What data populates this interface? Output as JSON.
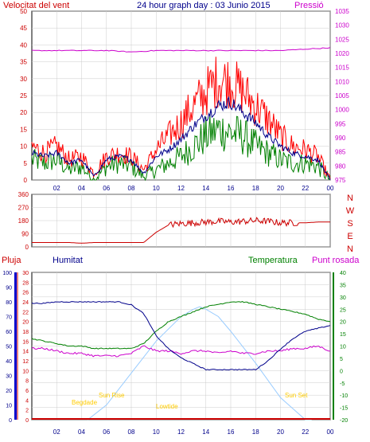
{
  "header": {
    "left_label": "Velocitat del vent",
    "title": "24 hour graph day : 03 Junio 2015",
    "right_label": "Pressió"
  },
  "x_ticks": [
    "02",
    "04",
    "06",
    "08",
    "10",
    "12",
    "14",
    "16",
    "18",
    "20",
    "22",
    "00"
  ],
  "wind": {
    "ylim": [
      0,
      50
    ],
    "yticks": [
      0,
      5,
      10,
      15,
      20,
      25,
      30,
      35,
      40,
      45,
      50
    ],
    "pressure_ylim": [
      975,
      1035
    ],
    "pressure_ticks": [
      975,
      980,
      985,
      990,
      995,
      1000,
      1005,
      1010,
      1015,
      1020,
      1025,
      1030,
      1035
    ],
    "colors": {
      "gust": "#ff0000",
      "speed": "#00008b",
      "low": "#008000",
      "pressure": "#cc00cc"
    }
  },
  "direction": {
    "ylim": [
      0,
      360
    ],
    "yticks": [
      0,
      90,
      180,
      270,
      360
    ],
    "compass": [
      "N",
      "W",
      "S",
      "E",
      "N"
    ],
    "color": "#cc0000"
  },
  "bottom": {
    "labels": {
      "rain": "Pluja",
      "humidity": "Humitat",
      "temperature": "Temperatura",
      "dewpoint": "Punt rosada"
    },
    "rain_ticks": [
      0,
      2,
      4,
      6,
      8,
      10,
      12,
      14,
      16,
      18,
      20,
      22,
      24,
      26,
      28,
      30
    ],
    "humidity_ticks": [
      0,
      10,
      20,
      30,
      40,
      50,
      60,
      70,
      80,
      90,
      100
    ],
    "temp_ticks": [
      -20,
      -15,
      -10,
      -5,
      0,
      5,
      10,
      15,
      20,
      25,
      30,
      35,
      40
    ],
    "sun_labels": {
      "begdade": "Begdade",
      "sunrise": "Sun Rise",
      "lowtide": "Lowtide",
      "sunset": "Sun Set"
    }
  },
  "chart_data": [
    {
      "type": "line",
      "title": "24 hour graph day : 03 Junio 2015",
      "x_unit": "hour",
      "xlim": [
        0,
        24
      ],
      "ylabel": "Velocitat del vent",
      "ylim": [
        0,
        50
      ],
      "y2label": "Pressió",
      "y2lim": [
        975,
        1035
      ],
      "series": [
        {
          "name": "gust",
          "axis": "y",
          "x": [
            0,
            1,
            2,
            3,
            4,
            5,
            6,
            7,
            8,
            9,
            10,
            11,
            12,
            13,
            14,
            15,
            16,
            17,
            18,
            19,
            20,
            21,
            22,
            23,
            24
          ],
          "y": [
            10,
            8,
            10,
            6,
            7,
            2,
            7,
            8,
            7,
            3,
            9,
            13,
            17,
            22,
            26,
            30,
            29,
            26,
            22,
            18,
            13,
            10,
            9,
            7,
            0
          ]
        },
        {
          "name": "speed",
          "axis": "y",
          "x": [
            0,
            1,
            2,
            3,
            4,
            5,
            6,
            7,
            8,
            9,
            10,
            11,
            12,
            13,
            14,
            15,
            16,
            17,
            18,
            19,
            20,
            21,
            22,
            23,
            24
          ],
          "y": [
            8,
            7,
            8,
            5,
            6,
            1,
            6,
            7,
            6,
            2,
            7,
            9,
            12,
            16,
            19,
            22,
            23,
            20,
            17,
            13,
            10,
            8,
            7,
            6,
            0
          ]
        },
        {
          "name": "low",
          "axis": "y",
          "x": [
            0,
            1,
            2,
            3,
            4,
            5,
            6,
            7,
            8,
            9,
            10,
            11,
            12,
            13,
            14,
            15,
            16,
            17,
            18,
            19,
            20,
            21,
            22,
            23,
            24
          ],
          "y": [
            6,
            5,
            6,
            3,
            4,
            0,
            4,
            5,
            4,
            1,
            3,
            5,
            7,
            10,
            13,
            15,
            14,
            13,
            10,
            8,
            6,
            5,
            5,
            4,
            0
          ]
        },
        {
          "name": "Pressió",
          "axis": "y2",
          "x": [
            0,
            2,
            4,
            6,
            8,
            10,
            12,
            14,
            16,
            18,
            20,
            22,
            24
          ],
          "y": [
            1021,
            1021,
            1021,
            1021,
            1020.5,
            1021,
            1021,
            1021,
            1021,
            1021,
            1021,
            1021.5,
            1022
          ]
        }
      ]
    },
    {
      "type": "line",
      "xlim": [
        0,
        24
      ],
      "ylim": [
        0,
        360
      ],
      "series": [
        {
          "name": "direction",
          "x": [
            0,
            1,
            2,
            3,
            4,
            5,
            6,
            7,
            8,
            9,
            10,
            11,
            12,
            13,
            14,
            15,
            16,
            17,
            18,
            19,
            20,
            21,
            22,
            23,
            24
          ],
          "y": [
            30,
            30,
            30,
            30,
            25,
            30,
            30,
            30,
            30,
            30,
            100,
            150,
            160,
            165,
            170,
            175,
            170,
            175,
            180,
            175,
            165,
            165,
            165,
            170,
            170
          ]
        }
      ]
    },
    {
      "type": "line",
      "xlim": [
        0,
        24
      ],
      "ylim_temperature": [
        -20,
        40
      ],
      "ylim_humidity": [
        0,
        100
      ],
      "ylim_rain": [
        0,
        30
      ],
      "series": [
        {
          "name": "Humitat",
          "axis": "humidity",
          "x": [
            0,
            1,
            2,
            3,
            4,
            5,
            6,
            7,
            8,
            9,
            10,
            11,
            12,
            13,
            14,
            15,
            16,
            17,
            18,
            19,
            20,
            21,
            22,
            23,
            24
          ],
          "y": [
            79,
            79,
            80,
            80,
            80,
            80,
            80,
            80,
            78,
            72,
            57,
            48,
            42,
            38,
            34,
            34,
            34,
            34,
            34,
            40,
            48,
            55,
            60,
            62,
            64
          ]
        },
        {
          "name": "Temperatura",
          "axis": "temperature",
          "x": [
            0,
            1,
            2,
            3,
            4,
            5,
            6,
            7,
            8,
            9,
            10,
            11,
            12,
            13,
            14,
            15,
            16,
            17,
            18,
            19,
            20,
            21,
            22,
            23,
            24
          ],
          "y": [
            13,
            12,
            11,
            10,
            10,
            9,
            9,
            9,
            9,
            11,
            16,
            20,
            22,
            24,
            26,
            27,
            28,
            28,
            27,
            26,
            25,
            24,
            23,
            21,
            20
          ]
        },
        {
          "name": "Punt rosada",
          "axis": "temperature",
          "x": [
            0,
            1,
            2,
            3,
            4,
            5,
            6,
            7,
            8,
            9,
            10,
            11,
            12,
            13,
            14,
            15,
            16,
            17,
            18,
            19,
            20,
            21,
            22,
            23,
            24
          ],
          "y": [
            9,
            9,
            8,
            7,
            7,
            6,
            6,
            6,
            7,
            10,
            8,
            8,
            7,
            8,
            8,
            7,
            8,
            7,
            7,
            8,
            8,
            9,
            9,
            10,
            8
          ]
        },
        {
          "name": "solar",
          "axis": "temperature",
          "x": [
            4.5,
            6,
            8,
            10,
            12,
            13,
            13.5,
            14,
            15,
            16,
            18,
            20,
            22,
            22.5
          ],
          "y": [
            -20,
            -14,
            -1,
            12,
            22,
            25,
            26,
            25,
            22,
            16,
            3,
            -11,
            -20,
            -20
          ]
        },
        {
          "name": "Pluja",
          "axis": "rain",
          "x": [
            0,
            24
          ],
          "y": [
            0,
            0
          ]
        }
      ]
    }
  ]
}
